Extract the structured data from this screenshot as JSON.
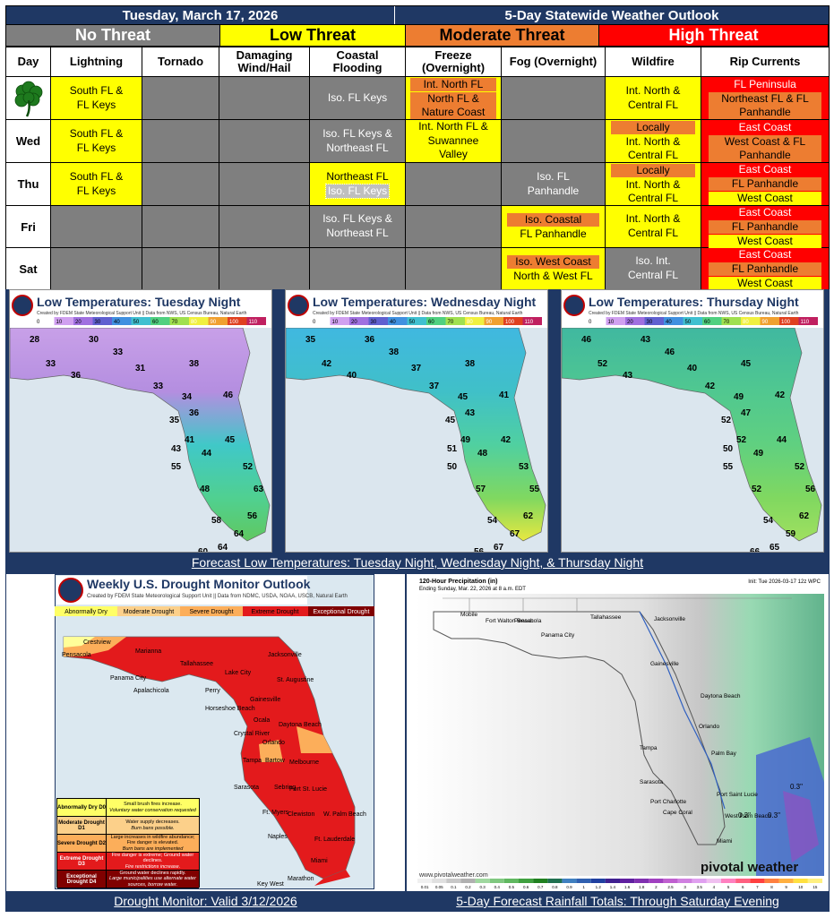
{
  "header": {
    "date": "Tuesday, March 17, 2026",
    "title": "5-Day Statewide Weather Outlook"
  },
  "legend": {
    "none": "No Threat",
    "low": "Low Threat",
    "moderate": "Moderate Threat",
    "high": "High Threat"
  },
  "columns": {
    "day": "Day",
    "lightning": "Lightning",
    "tornado": "Tornado",
    "wind": "Damaging Wind/Hail",
    "coastal": "Coastal Flooding",
    "freeze": "Freeze (Overnight)",
    "fog": "Fog (Overnight)",
    "wildfire": "Wildfire",
    "rip": "Rip Currents"
  },
  "rows": {
    "tue": {
      "lightning": "South FL & FL Keys",
      "coastal": "Iso. FL Keys",
      "freeze": [
        "Int. North FL",
        "North FL & Nature Coast"
      ],
      "wildfire": "Int. North & Central FL",
      "rip": [
        "FL Peninsula",
        "Northeast FL & FL Panhandle"
      ]
    },
    "wed": {
      "day": "Wed",
      "lightning": "South FL & FL Keys",
      "coastal": "Iso. FL Keys & Northeast FL",
      "freeze": "Int. North FL & Suwannee Valley",
      "wildfire": [
        "Locally",
        "Int. North & Central FL"
      ],
      "rip": [
        "East Coast",
        "West Coast & FL Panhandle"
      ]
    },
    "thu": {
      "day": "Thu",
      "lightning": "South FL & FL Keys",
      "coastal": [
        "Northeast FL",
        "Iso. FL Keys"
      ],
      "fog": "Iso. FL Panhandle",
      "wildfire": [
        "Locally",
        "Int. North & Central FL"
      ],
      "rip": [
        "East Coast",
        "FL Panhandle",
        "West Coast"
      ]
    },
    "fri": {
      "day": "Fri",
      "coastal": "Iso. FL Keys & Northeast FL",
      "fog": [
        "Iso. Coastal",
        "FL Panhandle"
      ],
      "wildfire": "Int. North & Central FL",
      "rip": [
        "East Coast",
        "FL Panhandle",
        "West Coast"
      ]
    },
    "sat": {
      "day": "Sat",
      "fog": [
        "Iso. West Coast",
        "North & West FL"
      ],
      "wildfire": "Iso. Int. Central FL",
      "rip": [
        "East Coast",
        "FL Panhandle",
        "West Coast"
      ]
    }
  },
  "temp_maps": [
    {
      "title": "Low Temperatures: Tuesday Night",
      "sub": "Created by FDEM State Meteorological Support Unit || Data from NWS, US Census Bureau, Natural Earth",
      "vals": [
        "28",
        "30",
        "33",
        "33",
        "36",
        "31",
        "33",
        "38",
        "34",
        "36",
        "46",
        "35",
        "45",
        "43",
        "41",
        "44",
        "55",
        "52",
        "48",
        "63",
        "56",
        "64",
        "64",
        "60",
        "58"
      ]
    },
    {
      "title": "Low Temperatures: Wednesday Night",
      "sub": "Created by FDEM State Meteorological Support Unit || Data from NWS, US Census Bureau, Natural Earth",
      "vals": [
        "35",
        "36",
        "42",
        "38",
        "40",
        "37",
        "37",
        "38",
        "45",
        "43",
        "41",
        "45",
        "42",
        "51",
        "49",
        "48",
        "50",
        "53",
        "57",
        "55",
        "62",
        "67",
        "67",
        "56",
        "54"
      ]
    },
    {
      "title": "Low Temperatures: Thursday Night",
      "sub": "Created by FDEM State Meteorological Support Unit || Data from NWS, US Census Bureau, Natural Earth",
      "vals": [
        "46",
        "43",
        "52",
        "46",
        "43",
        "40",
        "42",
        "45",
        "49",
        "47",
        "42",
        "52",
        "44",
        "50",
        "52",
        "49",
        "55",
        "52",
        "52",
        "56",
        "62",
        "59",
        "65",
        "66",
        "54"
      ]
    }
  ],
  "temp_scale": [
    "0",
    "10",
    "20",
    "30",
    "40",
    "50",
    "60",
    "70",
    "80",
    "90",
    "100",
    "110"
  ],
  "captions": {
    "temps": "Forecast Low Temperatures: Tuesday Night, Wednesday Night, & Thursday Night",
    "drought": "Drought Monitor: Valid 3/12/2026",
    "rain": "5-Day Forecast Rainfall Totals: Through Saturday Evening"
  },
  "drought": {
    "title": "Weekly U.S. Drought Monitor Outlook",
    "sub": "Created by FDEM State Meteorological Support Unit || Data from NDMC, USDA, NOAA, USCB, Natural Earth",
    "cats": [
      "Abnormally Dry",
      "Moderate Drought",
      "Severe Drought",
      "Extreme Drought",
      "Exceptional Drought"
    ],
    "cities": [
      "Pensacola",
      "Crestview",
      "Marianna",
      "Tallahassee",
      "Panama City",
      "Apalachicola",
      "Perry",
      "Lake City",
      "Jacksonville",
      "St. Augustine",
      "Gainesville",
      "Horseshoe Beach",
      "Ocala",
      "Daytona Beach",
      "Crystal River",
      "Orlando",
      "Tampa",
      "Bartow",
      "Melbourne",
      "Sarasota",
      "Sebring",
      "Port St. Lucie",
      "Ft. Myers",
      "Clewiston",
      "W. Palm Beach",
      "Naples",
      "Ft. Lauderdale",
      "Miami",
      "Marathon",
      "Key West"
    ],
    "table": [
      {
        "code": "Abnormally Dry D0",
        "desc": "Small brush fires increase.",
        "note": "Voluntary water conservation requested"
      },
      {
        "code": "Moderate Drought D1",
        "desc": "Water supply decreases.",
        "note": "Burn bans possible."
      },
      {
        "code": "Severe Drought D2",
        "desc": "Large increases in wildfire abundance; Fire danger is elevated.",
        "note": "Burn bans are implemented"
      },
      {
        "code": "Extreme Drought D3",
        "desc": "Fire danger is extreme; Ground water declines.",
        "note": "Fire restrictions increase."
      },
      {
        "code": "Exceptional Drought D4",
        "desc": "Ground water declines rapidly.",
        "note": "Large municipalities use alternate water sources, borrow water."
      }
    ]
  },
  "rain": {
    "title": "120-Hour Precipitation (in)",
    "sub": "Ending Sunday, Mar. 22, 2026 at 8 a.m. EDT",
    "init": "Init: Tue 2026-03-17 12z WPC",
    "cities": [
      "Mobile",
      "Fort Walton Beach",
      "Pensacola",
      "Panama City",
      "Tallahassee",
      "Jacksonville",
      "Gainesville",
      "Daytona Beach",
      "Orlando",
      "Palm Bay",
      "Tampa",
      "Sarasota",
      "Port Saint Lucie",
      "Port Charlotte",
      "Cape Coral",
      "West Palm Beach",
      "Miami"
    ],
    "marks": [
      "0.3\"",
      "0.3\"",
      "0.3\""
    ],
    "watermark": "pivotal weather",
    "site": "www.pivotalweather.com",
    "scale": [
      "0.01",
      "0.05",
      "0.1",
      "0.2",
      "0.3",
      "0.4",
      "0.5",
      "0.6",
      "0.7",
      "0.8",
      "0.9",
      "1",
      "1.2",
      "1.4",
      "1.6",
      "1.8",
      "2",
      "2.5",
      "3",
      "3.5",
      "4",
      "5",
      "6",
      "7",
      "8",
      "9",
      "10",
      "15"
    ]
  },
  "colors": {
    "navy": "#1f3864",
    "yellow": "#ffff00",
    "orange": "#ed7d31",
    "red": "#ff0000",
    "gray": "#7f7f7f"
  }
}
